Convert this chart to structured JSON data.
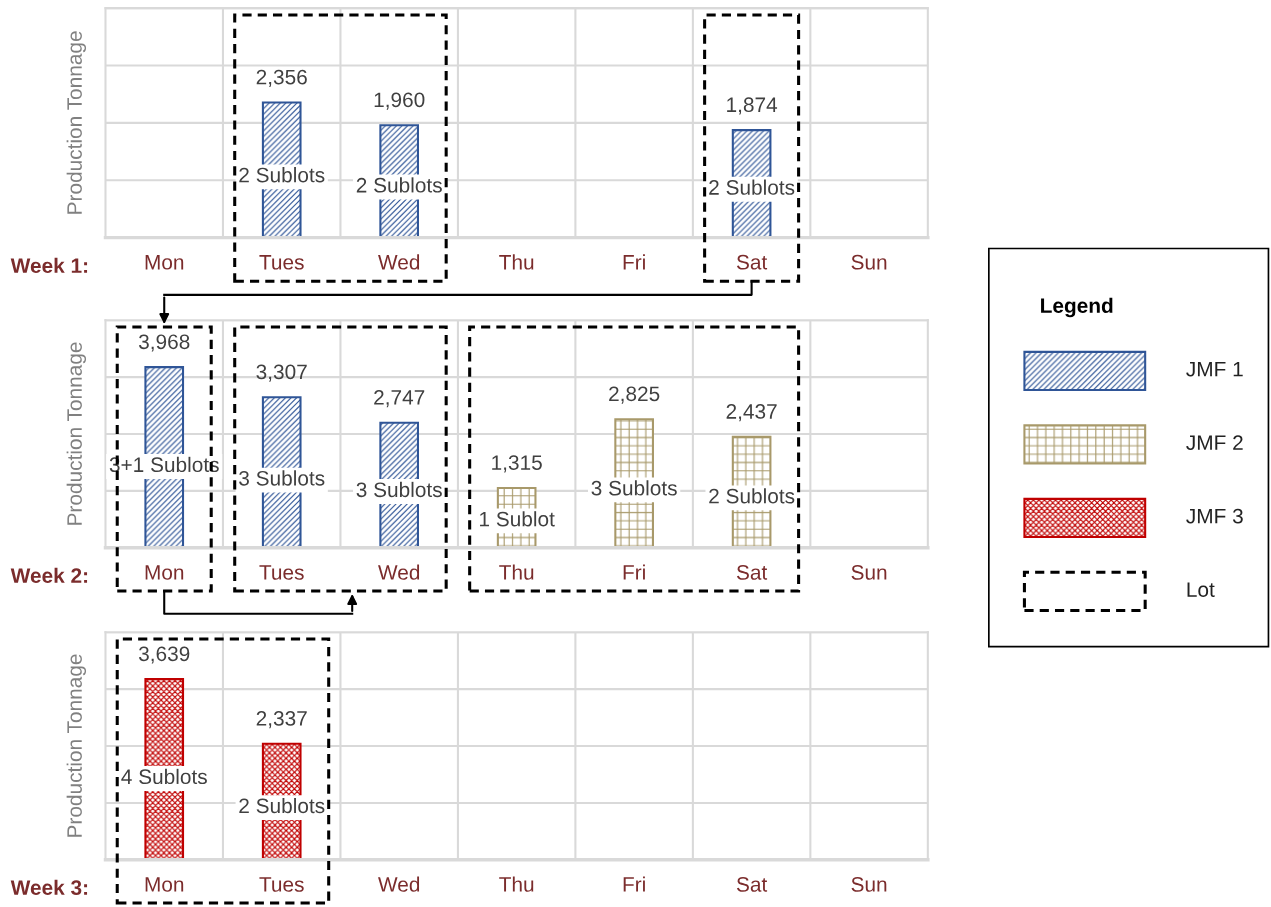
{
  "chart_data": [
    {
      "type": "bar",
      "xlabel": "Week 1:",
      "ylabel": "Production Tonnage",
      "categories": [
        "Mon",
        "Tues",
        "Wed",
        "Thu",
        "Fri",
        "Sat",
        "Sun"
      ],
      "series": [
        {
          "color": "#2f5597",
          "values": [
            null,
            2356,
            1960,
            null,
            null,
            1874,
            null
          ],
          "value_labels": [
            null,
            "2,356",
            "1,960",
            null,
            null,
            "1,874",
            null
          ]
        }
      ],
      "tick_labels": "x",
      "grid": true,
      "annotations": [
        "2 Sublots",
        "2 Sublots",
        "2 Sublots"
      ]
    },
    {
      "type": "bar",
      "xlabel": "Week 2:",
      "ylabel": "Production Tonnage",
      "categories": [
        "Mon",
        "Tues",
        "Wed",
        "Thu",
        "Fri",
        "Sat",
        "Sun"
      ],
      "series": [
        {
          "color": "#2f5597",
          "values": [
            3968,
            3307,
            2747,
            null,
            null,
            null,
            null
          ],
          "value_labels": [
            "3,968",
            "3,307",
            "2,747",
            null,
            null,
            null,
            null
          ]
        },
        {
          "color": "#a8996a",
          "values": [
            null,
            null,
            null,
            1315,
            2825,
            2437,
            null
          ],
          "value_labels": [
            null,
            null,
            null,
            "1,315",
            "2,825",
            "2,437",
            null
          ]
        }
      ],
      "tick_labels": "x",
      "grid": true,
      "annotations": [
        "3+1 Sublots",
        "3 Sublots",
        "3 Sublots",
        "1 Sublot",
        "3 Sublots",
        "2 Sublots",
        "Legend",
        "JMF 1",
        "JMF 2",
        "JMF 3",
        "Lot"
      ]
    },
    {
      "type": "bar",
      "xlabel": "Week 3:",
      "ylabel": "Production Tonnage",
      "categories": [
        "Mon",
        "Tues",
        "Wed",
        "Thu",
        "Fri",
        "Sat",
        "Sun"
      ],
      "series": [
        {
          "color": "#c00000",
          "values": [
            3639,
            2337,
            null,
            null,
            null,
            null,
            null
          ],
          "value_labels": [
            "3,639",
            "2,337",
            null,
            null,
            null,
            null,
            null
          ]
        }
      ],
      "tick_labels": "x",
      "grid": true,
      "annotations": [
        "4 Sublots",
        "2 Sublots"
      ]
    }
  ]
}
